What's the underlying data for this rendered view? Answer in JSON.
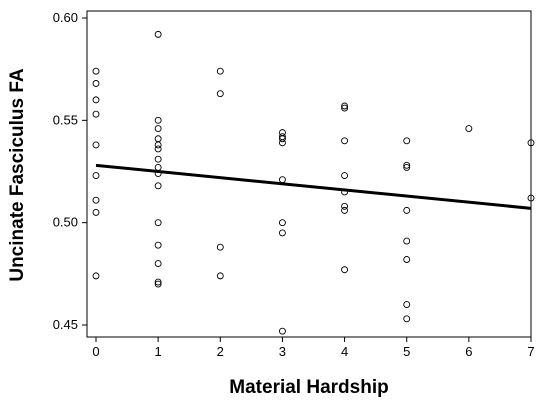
{
  "chart_data": {
    "type": "scatter",
    "title": "",
    "xlabel": "Material Hardship",
    "ylabel": "Uncinate Fasciculus FA",
    "xlim": [
      0,
      7
    ],
    "ylim": [
      0.45,
      0.6
    ],
    "x_ticks": [
      "0",
      "1",
      "2",
      "3",
      "4",
      "5",
      "6",
      "7"
    ],
    "y_ticks": [
      "0.45",
      "0.50",
      "0.55",
      "0.60"
    ],
    "grid": false,
    "legend": "none",
    "points": [
      [
        0,
        0.574
      ],
      [
        0,
        0.568
      ],
      [
        0,
        0.56
      ],
      [
        0,
        0.553
      ],
      [
        0,
        0.538
      ],
      [
        0,
        0.523
      ],
      [
        0,
        0.511
      ],
      [
        0,
        0.505
      ],
      [
        0,
        0.474
      ],
      [
        1,
        0.592
      ],
      [
        1,
        0.55
      ],
      [
        1,
        0.546
      ],
      [
        1,
        0.541
      ],
      [
        1,
        0.538
      ],
      [
        1,
        0.536
      ],
      [
        1,
        0.531
      ],
      [
        1,
        0.527
      ],
      [
        1,
        0.524
      ],
      [
        1,
        0.518
      ],
      [
        1,
        0.5
      ],
      [
        1,
        0.489
      ],
      [
        1,
        0.48
      ],
      [
        1,
        0.471
      ],
      [
        1,
        0.47
      ],
      [
        2,
        0.574
      ],
      [
        2,
        0.563
      ],
      [
        2,
        0.488
      ],
      [
        2,
        0.474
      ],
      [
        3,
        0.544
      ],
      [
        3,
        0.542
      ],
      [
        3,
        0.541
      ],
      [
        3,
        0.539
      ],
      [
        3,
        0.521
      ],
      [
        3,
        0.5
      ],
      [
        3,
        0.495
      ],
      [
        3,
        0.447
      ],
      [
        4,
        0.557
      ],
      [
        4,
        0.556
      ],
      [
        4,
        0.54
      ],
      [
        4,
        0.523
      ],
      [
        4,
        0.515
      ],
      [
        4,
        0.508
      ],
      [
        4,
        0.506
      ],
      [
        4,
        0.477
      ],
      [
        5,
        0.54
      ],
      [
        5,
        0.528
      ],
      [
        5,
        0.527
      ],
      [
        5,
        0.506
      ],
      [
        5,
        0.491
      ],
      [
        5,
        0.482
      ],
      [
        5,
        0.46
      ],
      [
        5,
        0.453
      ],
      [
        6,
        0.546
      ],
      [
        7,
        0.539
      ],
      [
        7,
        0.512
      ]
    ],
    "fit_line": {
      "x": [
        0,
        7
      ],
      "y": [
        0.528,
        0.507
      ]
    },
    "colors": {
      "points": "#000000",
      "line": "#000000",
      "axis": "#000000"
    }
  }
}
